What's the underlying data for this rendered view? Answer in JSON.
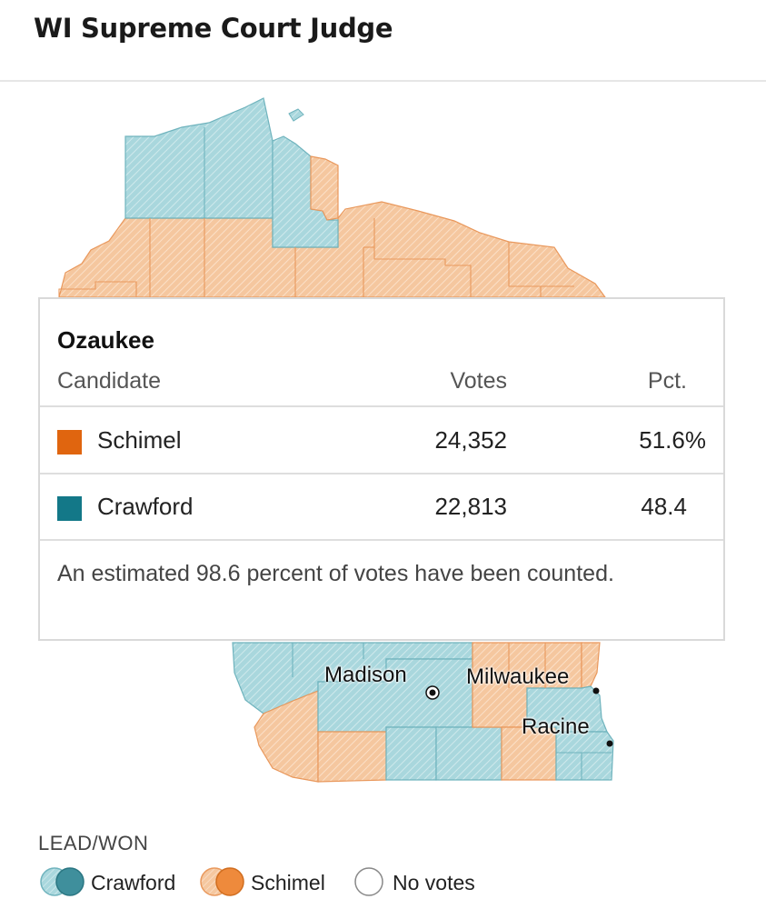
{
  "title": "WI Supreme Court Judge",
  "colors": {
    "crawford": "#137888",
    "crawford_map": "#a9d7dd",
    "schimel": "#e0650f",
    "schimel_map": "#f5c79f",
    "county_border_crawford": "#6fb3bd",
    "county_border_schimel": "#e9985c"
  },
  "tooltip": {
    "county": "Ozaukee",
    "headers": {
      "candidate": "Candidate",
      "votes": "Votes",
      "pct": "Pct."
    },
    "rows": [
      {
        "candidate": "Schimel",
        "votes": "24,352",
        "pct": "51.6%",
        "color": "#e0650f"
      },
      {
        "candidate": "Crawford",
        "votes": "22,813",
        "pct": "48.4",
        "color": "#137888"
      }
    ],
    "note": "An estimated 98.6 percent of votes have been counted."
  },
  "cities": [
    "Madison",
    "Milwaukee",
    "Racine"
  ],
  "legend": {
    "title": "LEAD/WON",
    "items": [
      {
        "label": "Crawford",
        "icon": "crawford-swatch-icon"
      },
      {
        "label": "Schimel",
        "icon": "schimel-swatch-icon"
      },
      {
        "label": "No votes",
        "icon": "no-votes-swatch-icon"
      }
    ]
  }
}
